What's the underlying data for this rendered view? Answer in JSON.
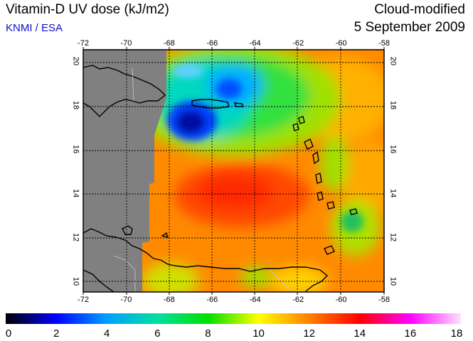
{
  "header": {
    "title": "Vitamin-D UV dose (kJ/m2)",
    "credit": "KNMI / ESA",
    "product": "Cloud-modified",
    "date": "5 September 2009"
  },
  "map": {
    "lon_range": [
      -72,
      -58
    ],
    "lat_range": [
      9.5,
      20.5
    ],
    "lon_ticks": [
      "-72",
      "-70",
      "-68",
      "-66",
      "-64",
      "-62",
      "-60",
      "-58"
    ],
    "lat_ticks": [
      "10",
      "12",
      "14",
      "16",
      "18",
      "20"
    ],
    "grid": true,
    "no_data_color": "#808080"
  },
  "colorbar": {
    "min": 0,
    "max": 18,
    "tick_labels": [
      "0",
      "2",
      "4",
      "6",
      "8",
      "10",
      "12",
      "14",
      "16",
      "18"
    ],
    "stops": [
      "#000000",
      "#0000ff",
      "#00a0ff",
      "#00e0a0",
      "#00e000",
      "#ffff00",
      "#ff8000",
      "#ff0000",
      "#ff00ff",
      "#ffe0ff"
    ]
  }
}
